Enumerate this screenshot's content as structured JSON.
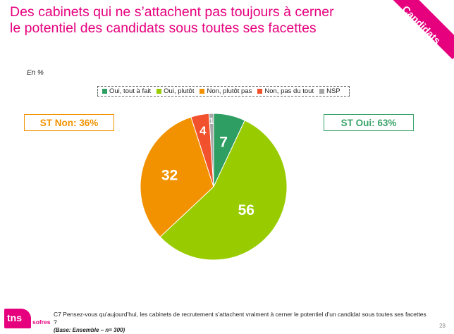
{
  "title": "Des cabinets qui ne s’attachent pas toujours à cerner le potentiel des candidats sous toutes ses facettes",
  "corner_label": "Candidats",
  "unit_label": "En %",
  "legend": [
    {
      "label": "Oui, tout à fait",
      "color": "#2e9e62"
    },
    {
      "label": "Oui, plutôt",
      "color": "#99cc00"
    },
    {
      "label": "Non, plutôt pas",
      "color": "#f29200"
    },
    {
      "label": "Non, pas du tout",
      "color": "#f2512d"
    },
    {
      "label": "NSP",
      "color": "#a6a6a6"
    }
  ],
  "st_non": "ST Non: 36%",
  "st_oui": "ST Oui: 63%",
  "chart_data": {
    "type": "pie",
    "slices": [
      {
        "label": "Oui, tout à fait",
        "value": 7,
        "color": "#2e9e62"
      },
      {
        "label": "Oui, plutôt",
        "value": 56,
        "color": "#99cc00"
      },
      {
        "label": "Non, plutôt pas",
        "value": 32,
        "color": "#f29200"
      },
      {
        "label": "Non, pas du tout",
        "value": 4,
        "color": "#f2512d"
      },
      {
        "label": "NSP",
        "value": 1,
        "color": "#a6a6a6"
      }
    ],
    "legend_position": "top"
  },
  "footer": {
    "logo_text": "tns",
    "logo_sub": "sofres",
    "question": "C7 Pensez-vous qu’aujourd’hui, les cabinets de recrutement s’attachent vraiment à cerner le potentiel d’un candidat sous toutes ses facettes ?",
    "base": "(Base: Ensemble – n= 300)",
    "page_number": "28"
  }
}
